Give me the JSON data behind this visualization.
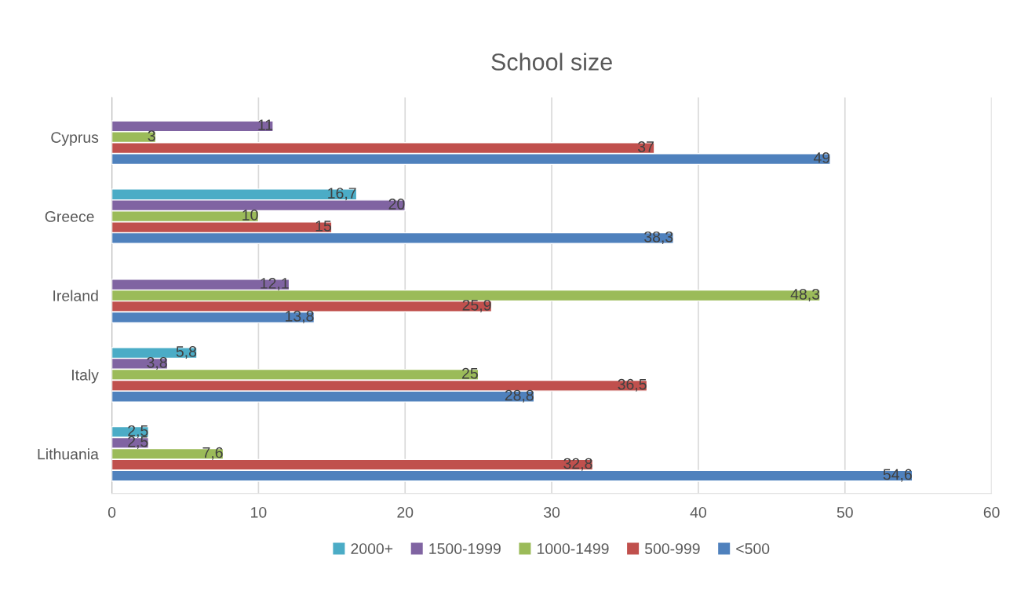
{
  "chart_data": {
    "type": "bar",
    "orientation": "horizontal",
    "title": "School size",
    "categories": [
      "Cyprus",
      "Greece ",
      "Ireland",
      "Italy",
      "Lithuania"
    ],
    "series": [
      {
        "name": "2000+",
        "color": "#4bacc6",
        "values": [
          null,
          16.7,
          null,
          5.8,
          2.5
        ],
        "value_labels": [
          null,
          "16,7",
          null,
          "5,8",
          "2,5"
        ]
      },
      {
        "name": "1500-1999",
        "color": "#8064a2",
        "values": [
          11,
          20,
          12.1,
          3.8,
          2.5
        ],
        "value_labels": [
          "11",
          "20",
          "12,1",
          "3,8",
          "2,5"
        ]
      },
      {
        "name": "1000-1499",
        "color": "#9bbb59",
        "values": [
          3,
          10,
          48.3,
          25,
          7.6
        ],
        "value_labels": [
          "3",
          "10",
          "48,3",
          "25",
          "7,6"
        ]
      },
      {
        "name": "500-999",
        "color": "#c0504d",
        "values": [
          37,
          15,
          25.9,
          36.5,
          32.8
        ],
        "value_labels": [
          "37",
          "15",
          "25,9",
          "36,5",
          "32,8"
        ]
      },
      {
        "name": "<500",
        "color": "#4f81bd",
        "values": [
          49,
          38.3,
          13.8,
          28.8,
          54.6
        ],
        "value_labels": [
          "49",
          "38,3",
          "13,8",
          "28,8",
          "54,6"
        ]
      }
    ],
    "xlim": [
      0,
      60
    ],
    "xticks": [
      0,
      10,
      20,
      30,
      40,
      50,
      60
    ],
    "grid": "x",
    "legend": "bottom"
  }
}
